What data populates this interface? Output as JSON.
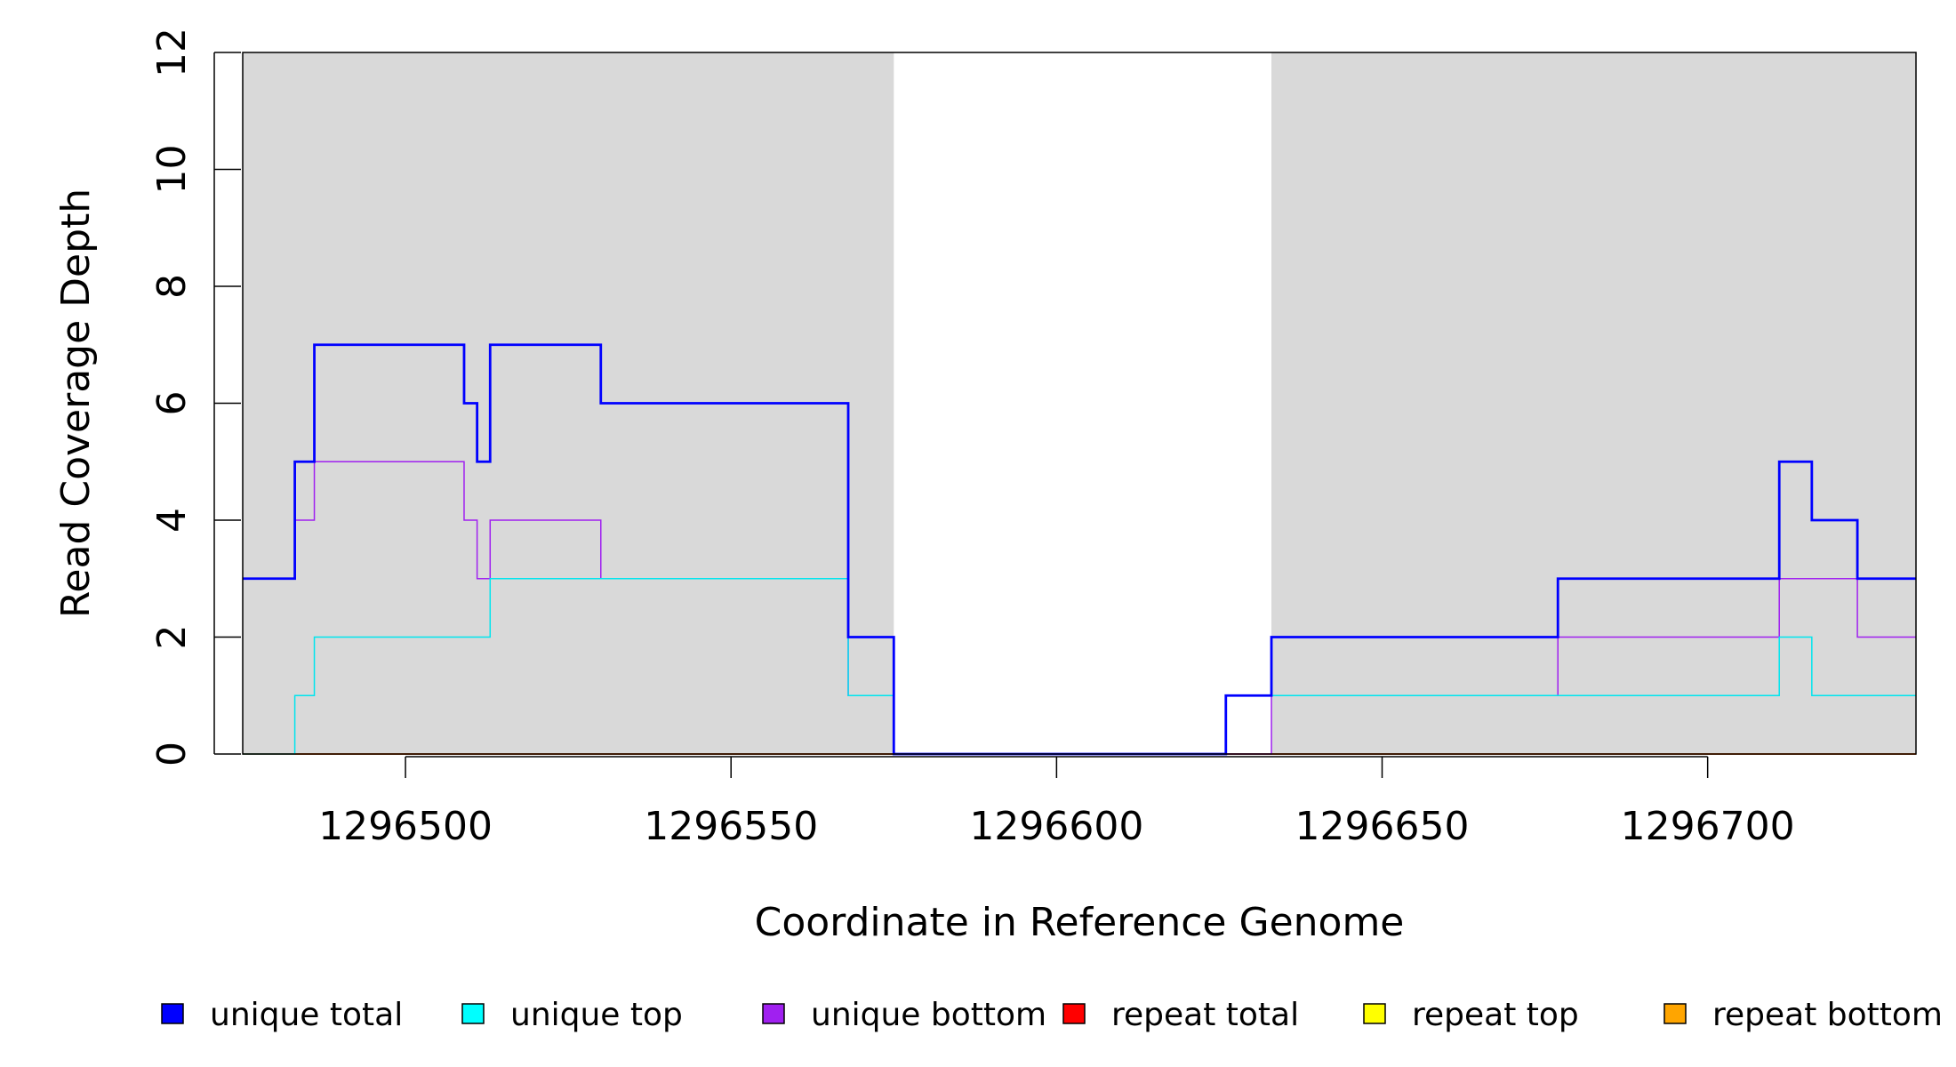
{
  "chart_data": {
    "type": "line",
    "title": "",
    "xlabel": "Coordinate in Reference Genome",
    "ylabel": "Read Coverage Depth",
    "xlim": [
      1296475,
      1296732
    ],
    "ylim": [
      0,
      12
    ],
    "x_ticks": [
      1296500,
      1296550,
      1296600,
      1296650,
      1296700
    ],
    "x_tick_labels": [
      "1296500",
      "1296550",
      "1296600",
      "1296650",
      "1296700"
    ],
    "y_ticks": [
      0,
      2,
      4,
      6,
      8,
      10,
      12
    ],
    "y_tick_labels": [
      "0",
      "2",
      "4",
      "6",
      "8",
      "10",
      "12"
    ],
    "shaded_regions": [
      [
        1296475,
        1296575
      ],
      [
        1296633,
        1296732
      ]
    ],
    "shade_color": "#d9d9d9",
    "legend_position": "bottom",
    "step_series": [
      {
        "name": "unique total",
        "color": "#0000ff",
        "x": [
          1296475,
          1296483,
          1296486,
          1296509,
          1296511,
          1296513,
          1296530,
          1296568,
          1296575,
          1296626,
          1296633,
          1296677,
          1296711,
          1296716,
          1296723,
          1296732
        ],
        "y": [
          3,
          5,
          7,
          6,
          5,
          7,
          6,
          2,
          0,
          1,
          2,
          3,
          5,
          4,
          3,
          3
        ]
      },
      {
        "name": "unique top",
        "color": "#00e5ee",
        "x": [
          1296475,
          1296483,
          1296486,
          1296513,
          1296568,
          1296575,
          1296626,
          1296633,
          1296677,
          1296711,
          1296716,
          1296732
        ],
        "y": [
          0,
          1,
          2,
          3,
          1,
          0,
          1,
          1,
          1,
          2,
          1,
          1
        ]
      },
      {
        "name": "unique bottom",
        "color": "#a020f0",
        "x": [
          1296475,
          1296483,
          1296486,
          1296509,
          1296511,
          1296513,
          1296530,
          1296568,
          1296575,
          1296626,
          1296633,
          1296677,
          1296711,
          1296723,
          1296732
        ],
        "y": [
          3,
          4,
          5,
          4,
          3,
          4,
          3,
          1,
          0,
          0,
          1,
          2,
          3,
          2,
          2
        ]
      },
      {
        "name": "repeat total",
        "color": "#ff0000",
        "x": [
          1296475,
          1296732
        ],
        "y": [
          0,
          0
        ]
      },
      {
        "name": "repeat top",
        "color": "#ffff00",
        "x": [
          1296475,
          1296732
        ],
        "y": [
          0,
          0
        ]
      },
      {
        "name": "repeat bottom",
        "color": "#ffa500",
        "x": [
          1296475,
          1296732
        ],
        "y": [
          0,
          0
        ]
      }
    ],
    "legend": [
      {
        "label": "unique total",
        "color": "#0000ff"
      },
      {
        "label": "unique top",
        "color": "#00ffff"
      },
      {
        "label": "unique bottom",
        "color": "#a020f0"
      },
      {
        "label": "repeat total",
        "color": "#ff0000"
      },
      {
        "label": "repeat top",
        "color": "#ffff00"
      },
      {
        "label": "repeat bottom",
        "color": "#ffa500"
      }
    ]
  }
}
